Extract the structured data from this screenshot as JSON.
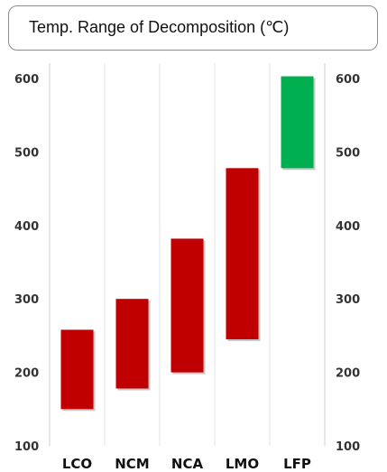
{
  "chart_data": {
    "type": "bar",
    "title": "Temp. Range of Decomposition (℃)",
    "categories": [
      "LCO",
      "NCM",
      "NCA",
      "LMO",
      "LFP"
    ],
    "ranges": [
      {
        "category": "LCO",
        "low": 150,
        "high": 258,
        "color": "#c00000"
      },
      {
        "category": "NCM",
        "low": 178,
        "high": 300,
        "color": "#c00000"
      },
      {
        "category": "NCA",
        "low": 200,
        "high": 382,
        "color": "#c00000"
      },
      {
        "category": "LMO",
        "low": 245,
        "high": 478,
        "color": "#c00000"
      },
      {
        "category": "LFP",
        "low": 478,
        "high": 603,
        "color": "#00b050"
      }
    ],
    "ylim": [
      100,
      600
    ],
    "yticks": [
      100,
      200,
      300,
      400,
      500,
      600
    ],
    "grid": true,
    "secondary_axis": true
  }
}
